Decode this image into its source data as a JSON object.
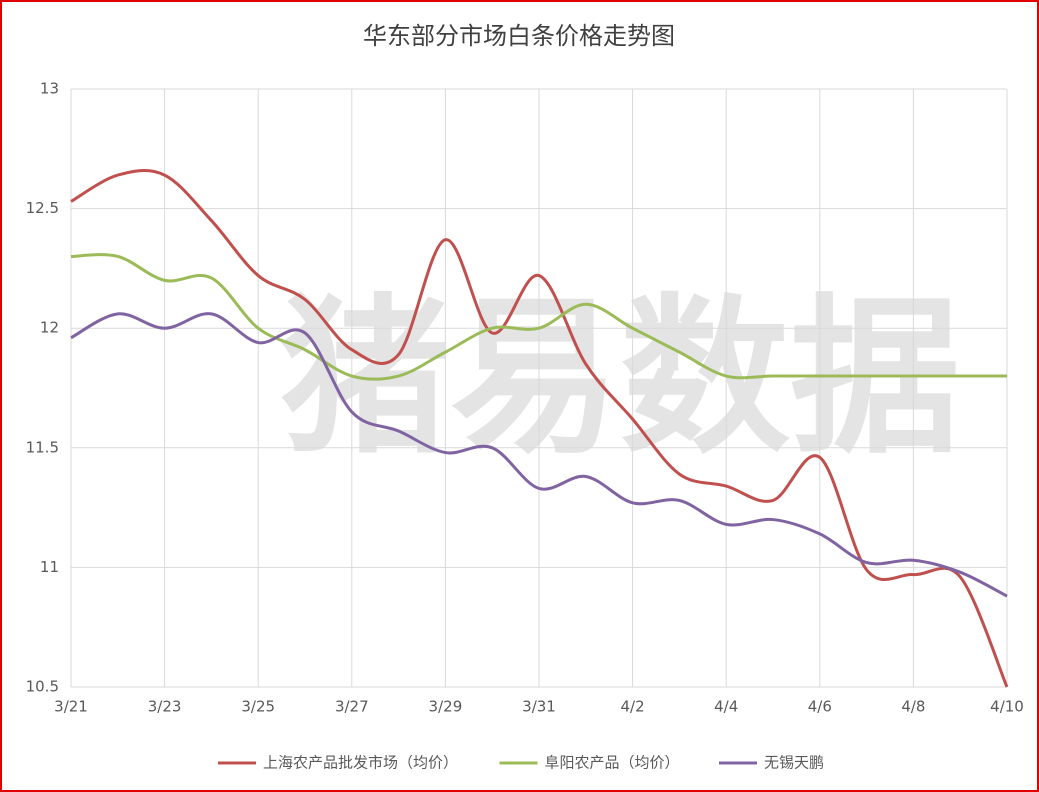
{
  "chart_data": {
    "type": "line",
    "title": "华东部分市场白条价格走势图",
    "watermark": "猪易数据",
    "categories": [
      "3/21",
      null,
      "3/23",
      null,
      "3/25",
      null,
      "3/27",
      null,
      "3/29",
      null,
      "3/31",
      null,
      "4/2",
      null,
      "4/4",
      null,
      "4/6",
      null,
      "4/8",
      null,
      "4/10"
    ],
    "series": [
      {
        "name": "上海农产品批发市场（均价）",
        "color": "#c0504d",
        "values": [
          12.53,
          12.64,
          12.64,
          12.45,
          12.22,
          12.12,
          11.91,
          11.89,
          12.37,
          11.98,
          12.22,
          11.85,
          11.62,
          11.39,
          11.34,
          11.28,
          11.46,
          10.99,
          10.97,
          10.96,
          10.5
        ]
      },
      {
        "name": "阜阳农产品（均价）",
        "color": "#9bbb59",
        "values": [
          12.3,
          12.3,
          12.2,
          12.21,
          12.0,
          11.91,
          11.8,
          11.8,
          11.9,
          12.0,
          12.0,
          12.1,
          12.0,
          11.9,
          11.8,
          11.8,
          11.8,
          11.8,
          11.8,
          11.8,
          11.8
        ]
      },
      {
        "name": "无锡天鹏",
        "color": "#8064a2",
        "values": [
          11.96,
          12.06,
          12.0,
          12.06,
          11.94,
          11.98,
          11.65,
          11.57,
          11.48,
          11.5,
          11.33,
          11.38,
          11.27,
          11.28,
          11.18,
          11.2,
          11.14,
          11.02,
          11.03,
          10.98,
          10.88
        ]
      }
    ],
    "ylim": [
      10.5,
      13
    ],
    "yticks": [
      10.5,
      11,
      11.5,
      12,
      12.5,
      13
    ],
    "grid": true,
    "smooth": true,
    "legend": "bottom"
  }
}
